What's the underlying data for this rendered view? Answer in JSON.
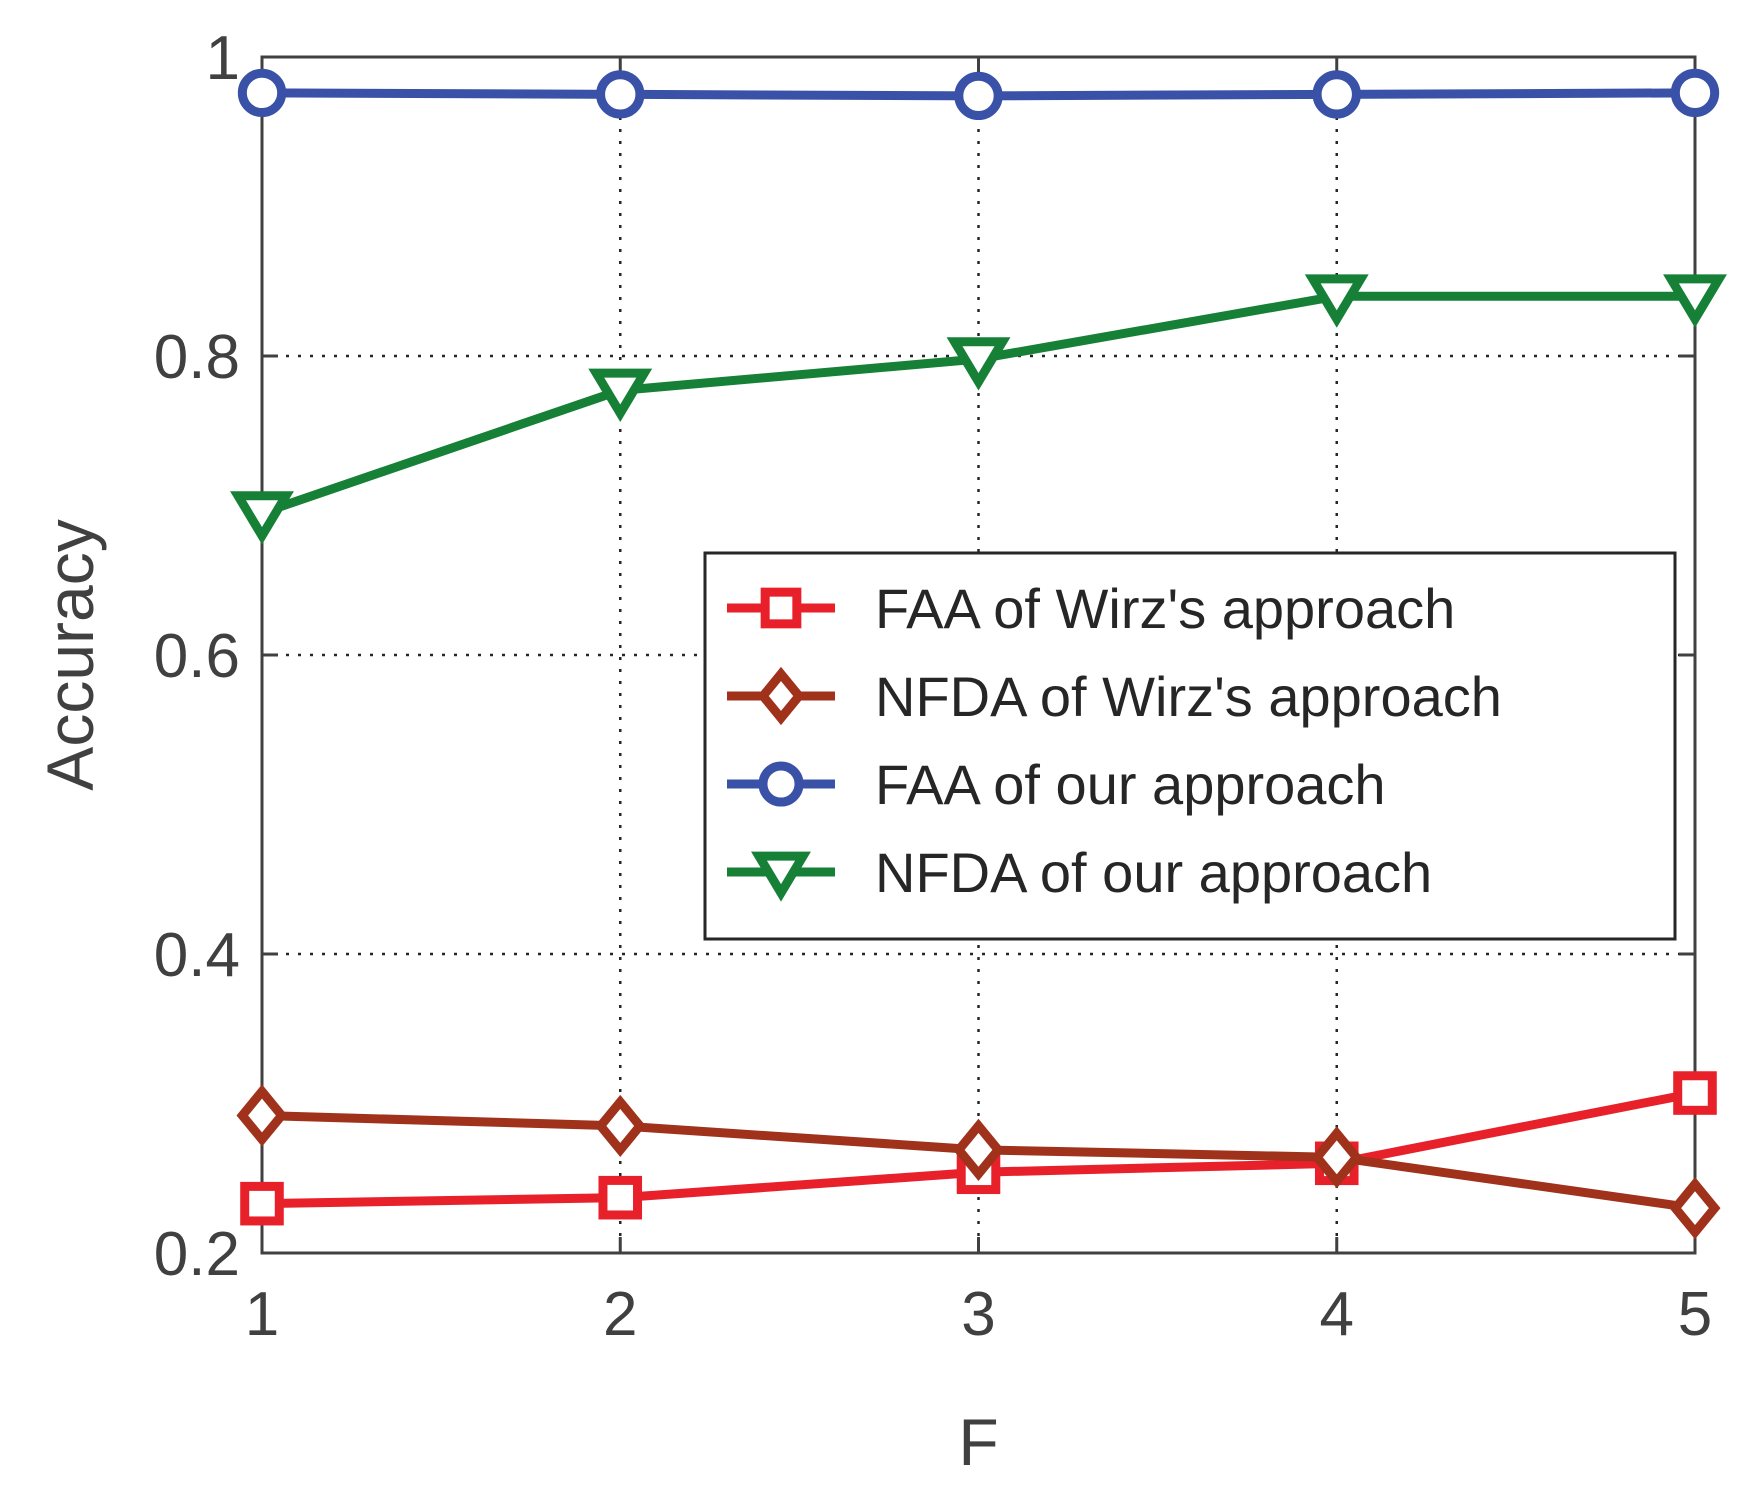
{
  "chart_data": {
    "type": "line",
    "title": "",
    "xlabel": "F",
    "ylabel": "Accuracy",
    "x": [
      1,
      2,
      3,
      4,
      5
    ],
    "xlim": [
      1,
      5
    ],
    "ylim": [
      0.2,
      1.0
    ],
    "xticks": [
      "1",
      "2",
      "3",
      "4",
      "5"
    ],
    "yticks": [
      "0.2",
      "0.4",
      "0.6",
      "0.8",
      "1"
    ],
    "ytick_values": [
      0.2,
      0.4,
      0.6,
      0.8,
      1.0
    ],
    "grid": true,
    "legend_position": "center-right",
    "series": [
      {
        "name": "FAA of Wirz's approach",
        "color": "#e8202a",
        "marker": "square",
        "values": [
          0.233,
          0.237,
          0.254,
          0.26,
          0.307
        ]
      },
      {
        "name": "NFDA of Wirz's approach",
        "color": "#a0321c",
        "marker": "diamond",
        "values": [
          0.292,
          0.285,
          0.269,
          0.264,
          0.23
        ]
      },
      {
        "name": "FAA of our approach",
        "color": "#3a51a8",
        "marker": "circle",
        "values": [
          0.976,
          0.975,
          0.974,
          0.975,
          0.976
        ]
      },
      {
        "name": "NFDA of our approach",
        "color": "#158036",
        "marker": "triangle-down",
        "values": [
          0.695,
          0.777,
          0.798,
          0.84,
          0.84
        ]
      }
    ]
  }
}
